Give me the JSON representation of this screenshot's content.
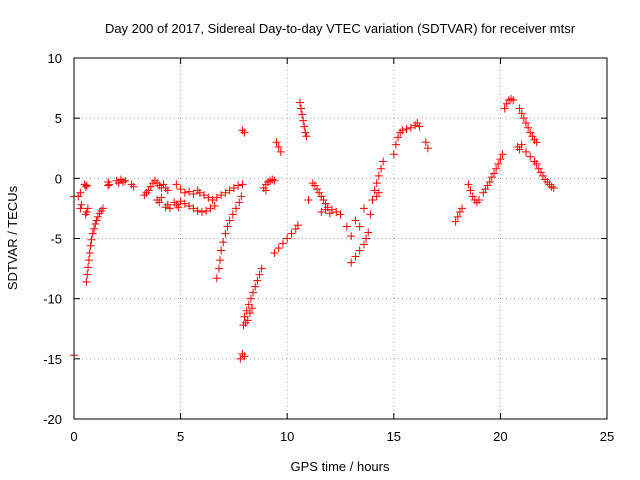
{
  "chart_data": {
    "type": "scatter",
    "title": "Day 200 of 2017, Sidereal Day-to-day VTEC variation (SDTVAR) for receiver mtsr",
    "xlabel": "GPS time / hours",
    "ylabel": "SDTVAR / TECUs",
    "xlim": [
      0,
      25
    ],
    "ylim": [
      -20,
      10
    ],
    "xticks": [
      0,
      5,
      10,
      15,
      20,
      25
    ],
    "yticks": [
      -20,
      -15,
      -10,
      -5,
      0,
      5,
      10
    ],
    "xtick_labels": [
      "0",
      "5",
      "10",
      "15",
      "20",
      "25"
    ],
    "ytick_labels": [
      "-20",
      "-15",
      "-10",
      "-5",
      "0",
      "5",
      "10"
    ],
    "grid": true,
    "marker": "+",
    "color": "#ff0000",
    "series": [
      {
        "name": "SDTVAR",
        "points": [
          [
            0.0,
            -14.7
          ],
          [
            0.0,
            -1.5
          ],
          [
            0.2,
            -1.5
          ],
          [
            0.3,
            -2.5
          ],
          [
            0.3,
            -1.2
          ],
          [
            0.35,
            -2.2
          ],
          [
            0.5,
            -0.5
          ],
          [
            0.55,
            -0.7
          ],
          [
            0.6,
            -0.6
          ],
          [
            0.55,
            -3.0
          ],
          [
            0.6,
            -2.8
          ],
          [
            0.65,
            -2.5
          ],
          [
            0.58,
            -8.6
          ],
          [
            0.62,
            -8.0
          ],
          [
            0.66,
            -7.4
          ],
          [
            0.7,
            -6.8
          ],
          [
            0.74,
            -6.2
          ],
          [
            0.78,
            -5.6
          ],
          [
            0.82,
            -5.1
          ],
          [
            0.88,
            -4.6
          ],
          [
            0.94,
            -4.2
          ],
          [
            1.0,
            -3.8
          ],
          [
            1.06,
            -3.5
          ],
          [
            1.12,
            -3.2
          ],
          [
            1.2,
            -2.9
          ],
          [
            1.28,
            -2.7
          ],
          [
            1.36,
            -2.5
          ],
          [
            1.6,
            -0.3
          ],
          [
            1.6,
            -0.6
          ],
          [
            1.65,
            -0.5
          ],
          [
            2.0,
            -0.2
          ],
          [
            2.1,
            -0.4
          ],
          [
            2.2,
            -0.1
          ],
          [
            2.3,
            -0.3
          ],
          [
            2.4,
            -0.2
          ],
          [
            2.7,
            -0.5
          ],
          [
            2.8,
            -0.7
          ],
          [
            3.3,
            -1.4
          ],
          [
            3.4,
            -1.2
          ],
          [
            3.5,
            -1.0
          ],
          [
            3.6,
            -0.7
          ],
          [
            3.7,
            -0.4
          ],
          [
            3.8,
            -0.2
          ],
          [
            3.9,
            -0.4
          ],
          [
            4.0,
            -0.6
          ],
          [
            4.1,
            -0.8
          ],
          [
            4.2,
            -0.5
          ],
          [
            4.3,
            -0.8
          ],
          [
            4.4,
            -1.0
          ],
          [
            3.9,
            -1.8
          ],
          [
            4.0,
            -2.0
          ],
          [
            4.1,
            -1.6
          ],
          [
            4.3,
            -2.4
          ],
          [
            4.4,
            -2.2
          ],
          [
            4.5,
            -2.5
          ],
          [
            4.7,
            -2.0
          ],
          [
            4.8,
            -2.2
          ],
          [
            4.9,
            -2.4
          ],
          [
            4.8,
            -0.5
          ],
          [
            5.0,
            -0.9
          ],
          [
            5.2,
            -1.2
          ],
          [
            5.4,
            -1.1
          ],
          [
            5.6,
            -1.3
          ],
          [
            5.8,
            -1.0
          ],
          [
            5.9,
            -1.2
          ],
          [
            6.1,
            -1.4
          ],
          [
            6.3,
            -1.6
          ],
          [
            6.5,
            -1.8
          ],
          [
            6.7,
            -1.6
          ],
          [
            6.9,
            -1.4
          ],
          [
            7.1,
            -1.2
          ],
          [
            7.3,
            -1.0
          ],
          [
            7.5,
            -0.8
          ],
          [
            7.7,
            -0.6
          ],
          [
            7.9,
            -0.5
          ],
          [
            5.0,
            -1.9
          ],
          [
            5.2,
            -2.1
          ],
          [
            5.4,
            -2.3
          ],
          [
            5.6,
            -2.5
          ],
          [
            5.8,
            -2.7
          ],
          [
            6.0,
            -2.8
          ],
          [
            6.2,
            -2.7
          ],
          [
            6.4,
            -2.5
          ],
          [
            6.6,
            -2.3
          ],
          [
            6.7,
            -8.3
          ],
          [
            6.8,
            -7.5
          ],
          [
            6.85,
            -6.8
          ],
          [
            6.9,
            -6.0
          ],
          [
            7.0,
            -5.3
          ],
          [
            7.1,
            -4.6
          ],
          [
            7.2,
            -4.0
          ],
          [
            7.3,
            -3.5
          ],
          [
            7.45,
            -3.0
          ],
          [
            7.6,
            -2.5
          ],
          [
            7.75,
            -2.0
          ],
          [
            7.85,
            -1.5
          ],
          [
            7.9,
            4.0
          ],
          [
            8.0,
            3.8
          ],
          [
            7.8,
            -15.0
          ],
          [
            7.9,
            -14.6
          ],
          [
            8.0,
            -14.8
          ],
          [
            7.95,
            -12.2
          ],
          [
            8.0,
            -11.5
          ],
          [
            8.1,
            -11.0
          ],
          [
            8.2,
            -10.5
          ],
          [
            8.3,
            -10.0
          ],
          [
            8.4,
            -9.5
          ],
          [
            8.5,
            -9.0
          ],
          [
            8.6,
            -8.5
          ],
          [
            8.7,
            -8.0
          ],
          [
            8.8,
            -7.5
          ],
          [
            8.05,
            -12.0
          ],
          [
            8.15,
            -11.8
          ],
          [
            8.25,
            -11.2
          ],
          [
            8.35,
            -10.8
          ],
          [
            8.9,
            -0.8
          ],
          [
            9.0,
            -0.5
          ],
          [
            9.1,
            -0.3
          ],
          [
            9.2,
            -0.2
          ],
          [
            9.3,
            -0.1
          ],
          [
            9.4,
            -0.2
          ],
          [
            9.0,
            -1.0
          ],
          [
            9.5,
            3.0
          ],
          [
            9.6,
            2.6
          ],
          [
            9.7,
            2.2
          ],
          [
            9.4,
            -6.2
          ],
          [
            9.6,
            -5.8
          ],
          [
            9.8,
            -5.4
          ],
          [
            10.0,
            -5.0
          ],
          [
            10.2,
            -4.6
          ],
          [
            10.4,
            -4.2
          ],
          [
            10.5,
            -3.9
          ],
          [
            10.6,
            6.3
          ],
          [
            10.65,
            5.8
          ],
          [
            10.7,
            5.3
          ],
          [
            10.75,
            4.8
          ],
          [
            10.8,
            4.3
          ],
          [
            10.85,
            3.8
          ],
          [
            10.9,
            3.5
          ],
          [
            11.0,
            -1.8
          ],
          [
            11.2,
            -0.4
          ],
          [
            11.3,
            -0.6
          ],
          [
            11.4,
            -0.9
          ],
          [
            11.5,
            -1.2
          ],
          [
            11.6,
            -1.5
          ],
          [
            11.7,
            -1.8
          ],
          [
            11.8,
            -2.1
          ],
          [
            11.9,
            -2.4
          ],
          [
            12.1,
            -2.6
          ],
          [
            12.3,
            -2.8
          ],
          [
            12.5,
            -3.0
          ],
          [
            11.6,
            -2.8
          ],
          [
            11.8,
            -2.6
          ],
          [
            12.0,
            -2.9
          ],
          [
            12.8,
            -4.0
          ],
          [
            13.0,
            -4.8
          ],
          [
            13.2,
            -3.5
          ],
          [
            13.4,
            -4.0
          ],
          [
            13.6,
            -2.5
          ],
          [
            13.0,
            -7.0
          ],
          [
            13.2,
            -6.5
          ],
          [
            13.4,
            -6.0
          ],
          [
            13.6,
            -5.5
          ],
          [
            13.7,
            -5.0
          ],
          [
            13.8,
            -4.5
          ],
          [
            13.9,
            -3.0
          ],
          [
            14.0,
            -1.8
          ],
          [
            14.1,
            -1.0
          ],
          [
            14.2,
            -0.4
          ],
          [
            14.3,
            0.2
          ],
          [
            14.4,
            0.8
          ],
          [
            14.5,
            1.4
          ],
          [
            14.2,
            -1.5
          ],
          [
            14.3,
            -1.2
          ],
          [
            15.0,
            2.0
          ],
          [
            15.1,
            2.8
          ],
          [
            15.2,
            3.4
          ],
          [
            15.3,
            3.8
          ],
          [
            15.4,
            4.0
          ],
          [
            15.6,
            4.1
          ],
          [
            15.8,
            4.2
          ],
          [
            16.0,
            4.4
          ],
          [
            16.1,
            4.6
          ],
          [
            16.2,
            4.3
          ],
          [
            16.5,
            3.0
          ],
          [
            16.6,
            2.5
          ],
          [
            17.9,
            -3.6
          ],
          [
            18.0,
            -3.2
          ],
          [
            18.1,
            -2.8
          ],
          [
            18.2,
            -2.5
          ],
          [
            18.5,
            -0.5
          ],
          [
            18.6,
            -1.0
          ],
          [
            18.7,
            -1.5
          ],
          [
            18.8,
            -1.8
          ],
          [
            18.9,
            -2.0
          ],
          [
            19.0,
            -1.8
          ],
          [
            19.2,
            -1.2
          ],
          [
            19.3,
            -0.9
          ],
          [
            19.4,
            -0.6
          ],
          [
            19.5,
            -0.3
          ],
          [
            19.6,
            0.1
          ],
          [
            19.7,
            0.4
          ],
          [
            19.8,
            0.8
          ],
          [
            19.9,
            1.2
          ],
          [
            20.0,
            1.6
          ],
          [
            20.1,
            2.0
          ],
          [
            20.2,
            5.8
          ],
          [
            20.3,
            6.2
          ],
          [
            20.4,
            6.5
          ],
          [
            20.5,
            6.6
          ],
          [
            20.6,
            6.5
          ],
          [
            20.9,
            5.8
          ],
          [
            21.0,
            5.4
          ],
          [
            21.1,
            5.0
          ],
          [
            21.2,
            4.6
          ],
          [
            21.3,
            4.2
          ],
          [
            21.4,
            3.8
          ],
          [
            21.5,
            3.5
          ],
          [
            21.6,
            3.2
          ],
          [
            21.7,
            3.0
          ],
          [
            20.8,
            2.6
          ],
          [
            20.9,
            2.4
          ],
          [
            21.0,
            2.8
          ],
          [
            21.2,
            2.2
          ],
          [
            21.4,
            1.8
          ],
          [
            21.6,
            1.4
          ],
          [
            21.7,
            1.2
          ],
          [
            21.8,
            0.8
          ],
          [
            21.9,
            0.5
          ],
          [
            22.0,
            0.2
          ],
          [
            22.1,
            -0.1
          ],
          [
            22.2,
            -0.3
          ],
          [
            22.3,
            -0.5
          ],
          [
            22.4,
            -0.7
          ],
          [
            22.5,
            -0.8
          ]
        ]
      }
    ]
  }
}
